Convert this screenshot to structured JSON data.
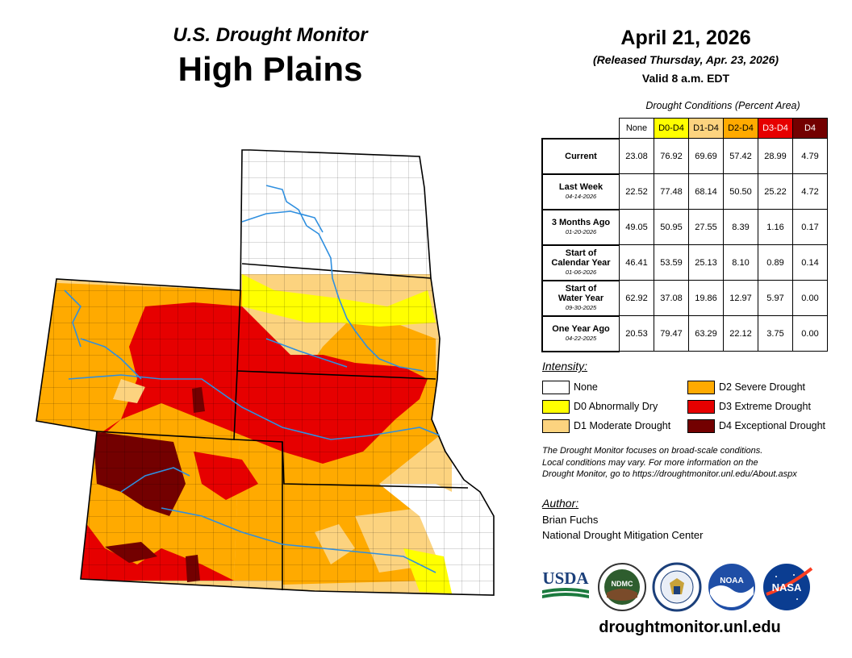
{
  "header": {
    "super_title": "U.S. Drought Monitor",
    "region": "High Plains",
    "date": "April 21, 2026",
    "released": "(Released Thursday, Apr. 23, 2026)",
    "valid": "Valid 8 a.m. EDT"
  },
  "table": {
    "caption": "Drought Conditions (Percent Area)",
    "columns": [
      {
        "label": "None",
        "color": "#ffffff"
      },
      {
        "label": "D0-D4",
        "color": "#ffff00"
      },
      {
        "label": "D1-D4",
        "color": "#fcd37f"
      },
      {
        "label": "D2-D4",
        "color": "#ffaa00"
      },
      {
        "label": "D3-D4",
        "color": "#e60000"
      },
      {
        "label": "D4",
        "color": "#730000"
      }
    ],
    "rows": [
      {
        "label1": "Current",
        "label2": "",
        "date": "",
        "values": [
          "23.08",
          "76.92",
          "69.69",
          "57.42",
          "28.99",
          "4.79"
        ]
      },
      {
        "label1": "Last Week",
        "label2": "",
        "date": "04-14-2026",
        "values": [
          "22.52",
          "77.48",
          "68.14",
          "50.50",
          "25.22",
          "4.72"
        ]
      },
      {
        "label1": "3 Months Ago",
        "label2": "",
        "date": "01-20-2026",
        "values": [
          "49.05",
          "50.95",
          "27.55",
          "8.39",
          "1.16",
          "0.17"
        ]
      },
      {
        "label1": "Start of",
        "label2": "Calendar Year",
        "date": "01-06-2026",
        "values": [
          "46.41",
          "53.59",
          "25.13",
          "8.10",
          "0.89",
          "0.14"
        ]
      },
      {
        "label1": "Start of",
        "label2": "Water Year",
        "date": "09-30-2025",
        "values": [
          "62.92",
          "37.08",
          "19.86",
          "12.97",
          "5.97",
          "0.00"
        ]
      },
      {
        "label1": "One Year Ago",
        "label2": "",
        "date": "04-22-2025",
        "values": [
          "20.53",
          "79.47",
          "63.29",
          "22.12",
          "3.75",
          "0.00"
        ]
      }
    ]
  },
  "legend": {
    "heading": "Intensity:",
    "items": [
      {
        "label": "None",
        "color": "#ffffff"
      },
      {
        "label": "D0 Abnormally Dry",
        "color": "#ffff00"
      },
      {
        "label": "D1 Moderate Drought",
        "color": "#fcd37f"
      },
      {
        "label": "D2 Severe Drought",
        "color": "#ffaa00"
      },
      {
        "label": "D3 Extreme Drought",
        "color": "#e60000"
      },
      {
        "label": "D4 Exceptional Drought",
        "color": "#730000"
      }
    ]
  },
  "note": {
    "line1": "The Drought Monitor focuses on broad-scale conditions.",
    "line2": "Local conditions may vary. For more information on the",
    "line3": "Drought Monitor, go to https://droughtmonitor.unl.edu/About.aspx"
  },
  "author": {
    "heading": "Author:",
    "name": "Brian Fuchs",
    "org": "National Drought Mitigation Center"
  },
  "logos": {
    "usda": "USDA",
    "ndmc": "NDMC",
    "noaa": "NOAA",
    "nasa": "NASA"
  },
  "footer": {
    "url": "droughtmonitor.unl.edu"
  }
}
